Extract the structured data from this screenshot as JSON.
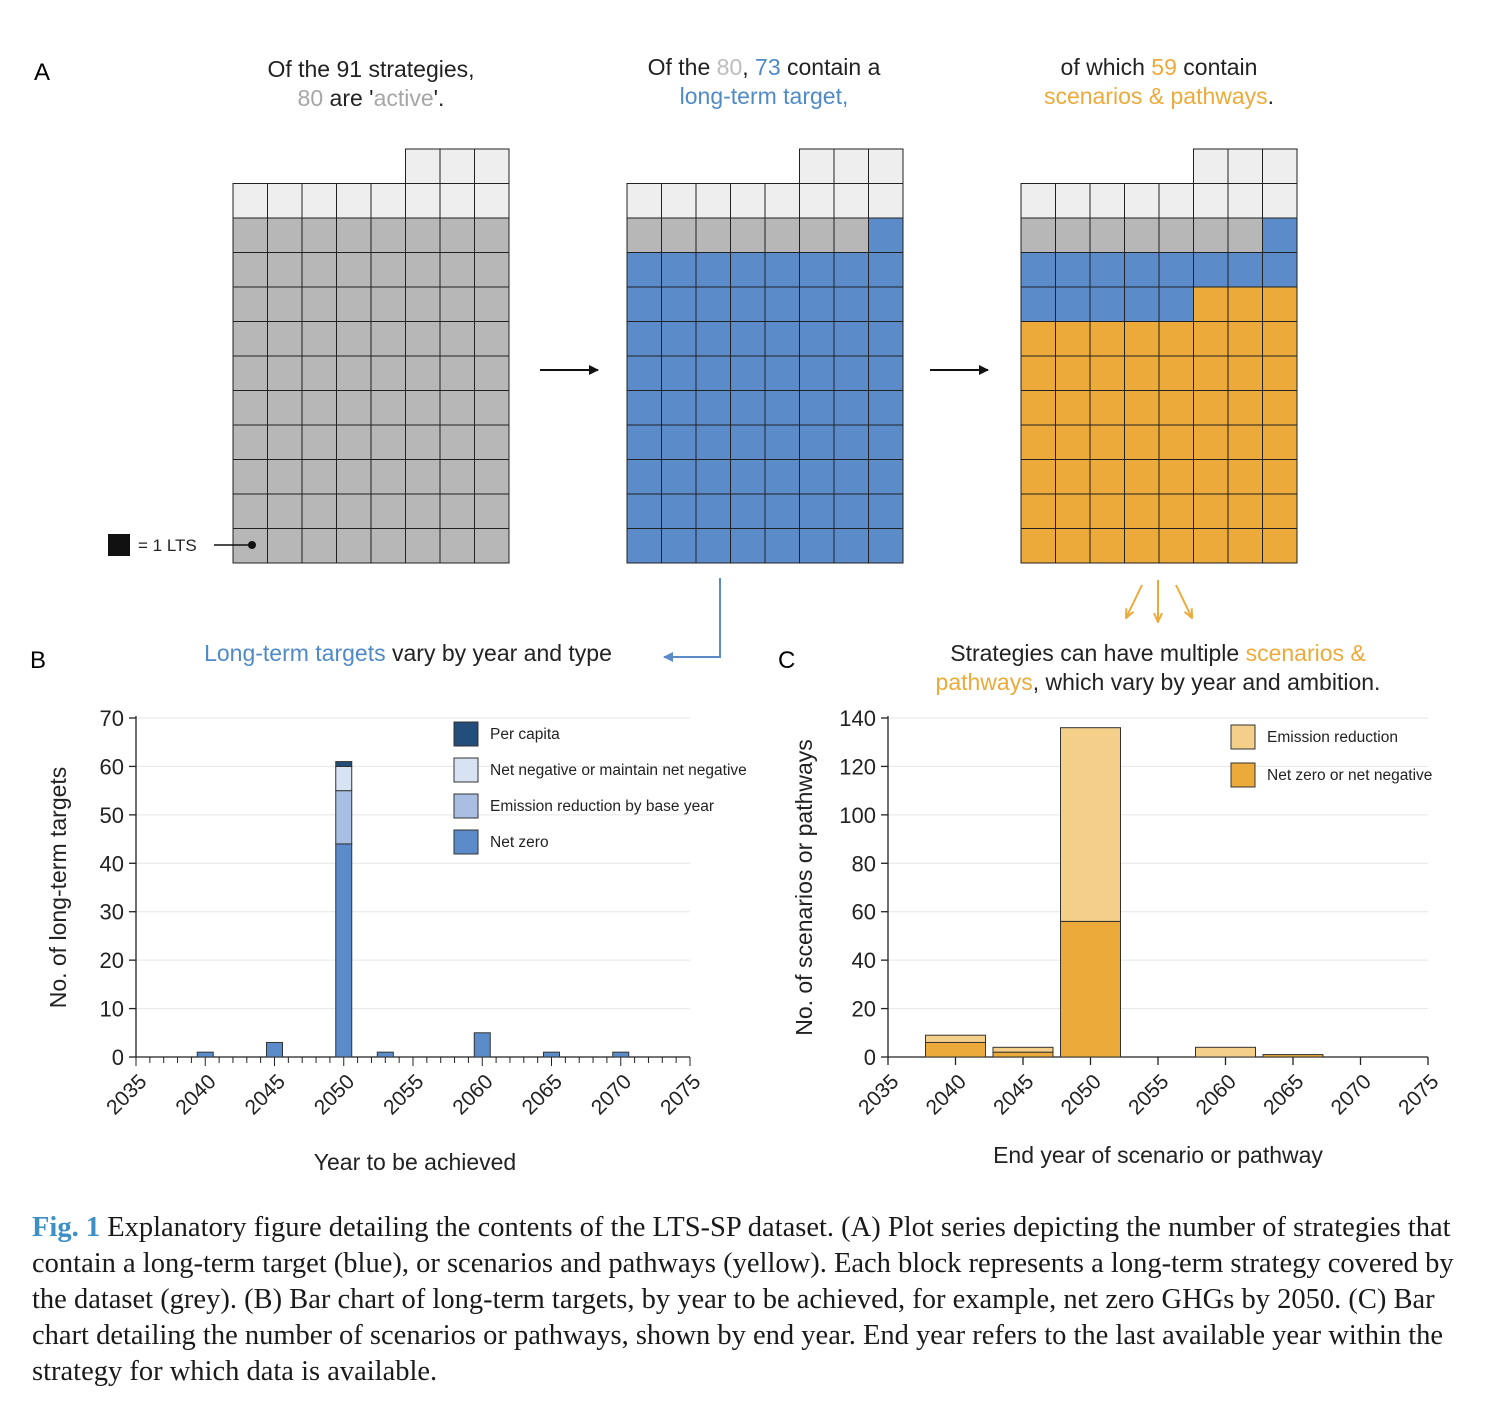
{
  "panel_labels": {
    "a": "A",
    "b": "B",
    "c": "C"
  },
  "waffle": {
    "legend_text": "= 1 LTS",
    "total": 91,
    "active": 80,
    "long_term_target": 73,
    "scenarios_pathways": 59,
    "heading_1": {
      "t1": "Of the 91 strategies,",
      "n80": "80",
      "t2": " are '",
      "active": "active",
      "t3": "'."
    },
    "heading_2": {
      "t1": "Of the ",
      "n80": "80",
      "t2": ", ",
      "n73": "73",
      "t3": " contain a",
      "lt": "long-term target",
      "t4": ","
    },
    "heading_3": {
      "t1": "of which ",
      "n59": "59",
      "t2": " contain",
      "sp": "scenarios & pathways",
      "t3": "."
    },
    "colors": {
      "inactive": "#eeeeee",
      "active": "#b7b7b7",
      "target": "#5b8cc9",
      "scenario": "#ecaa3a"
    }
  },
  "panel_b_heading": {
    "lt": "Long-term targets",
    "rest": " vary by year and type"
  },
  "panel_c_heading": {
    "l1a": "Strategies can have multiple ",
    "l1b": "scenarios &",
    "l2a": "pathways",
    "l2b": ", which vary by year and ambition."
  },
  "chart_data": [
    {
      "type": "bar",
      "stacked": true,
      "xlabel": "Year to be achieved",
      "ylabel": "No. of long-term targets",
      "ylim": [
        0,
        70
      ],
      "yticks": [
        0,
        10,
        20,
        30,
        40,
        50,
        60,
        70
      ],
      "xlim": [
        2035,
        2075
      ],
      "xticks": [
        2035,
        2040,
        2045,
        2050,
        2055,
        2060,
        2065,
        2070,
        2075
      ],
      "grid": true,
      "legend_position": "top-right",
      "x": [
        2040,
        2045,
        2050,
        2053,
        2060,
        2065,
        2070
      ],
      "series": [
        {
          "name": "Net zero",
          "color": "#5b8cc9",
          "values": [
            1,
            3,
            44,
            1,
            5,
            1,
            1
          ]
        },
        {
          "name": "Emission reduction by base year",
          "color": "#a8bfe3",
          "values": [
            0,
            0,
            11,
            0,
            0,
            0,
            0
          ]
        },
        {
          "name": "Net negative or maintain net negative",
          "color": "#d7e2f3",
          "values": [
            0,
            0,
            5,
            0,
            0,
            0,
            0
          ]
        },
        {
          "name": "Per capita",
          "color": "#234d7a",
          "values": [
            0,
            0,
            1,
            0,
            0,
            0,
            0
          ]
        }
      ]
    },
    {
      "type": "bar",
      "stacked": true,
      "xlabel": "End year of scenario or pathway",
      "ylabel": "No. of scenarios or pathways",
      "ylim": [
        0,
        140
      ],
      "yticks": [
        0,
        20,
        40,
        60,
        80,
        100,
        120,
        140
      ],
      "xlim": [
        2035,
        2075
      ],
      "xticks": [
        2035,
        2040,
        2045,
        2050,
        2055,
        2060,
        2065,
        2070,
        2075
      ],
      "grid": true,
      "legend_position": "top-right",
      "x": [
        2040,
        2045,
        2050,
        2060,
        2065
      ],
      "series": [
        {
          "name": "Net zero or net negative",
          "color": "#ecaa3a",
          "values": [
            6,
            2,
            56,
            0,
            1
          ]
        },
        {
          "name": "Emission reduction",
          "color": "#f4cf8a",
          "values": [
            3,
            2,
            80,
            4,
            0
          ]
        }
      ]
    }
  ],
  "caption": {
    "label": "Fig. 1",
    "text": "  Explanatory figure detailing the contents of the LTS-SP dataset. (A) Plot series depicting the number of strategies that contain a long-term target (blue), or scenarios and pathways (yellow). Each block represents a long-term strategy covered by the dataset (grey). (B) Bar chart of long-term targets, by year to be achieved, for example, net zero GHGs by 2050. (C) Bar chart detailing the number of scenarios or pathways, shown by end year. End year refers to the last available year within the strategy for which data is available."
  }
}
